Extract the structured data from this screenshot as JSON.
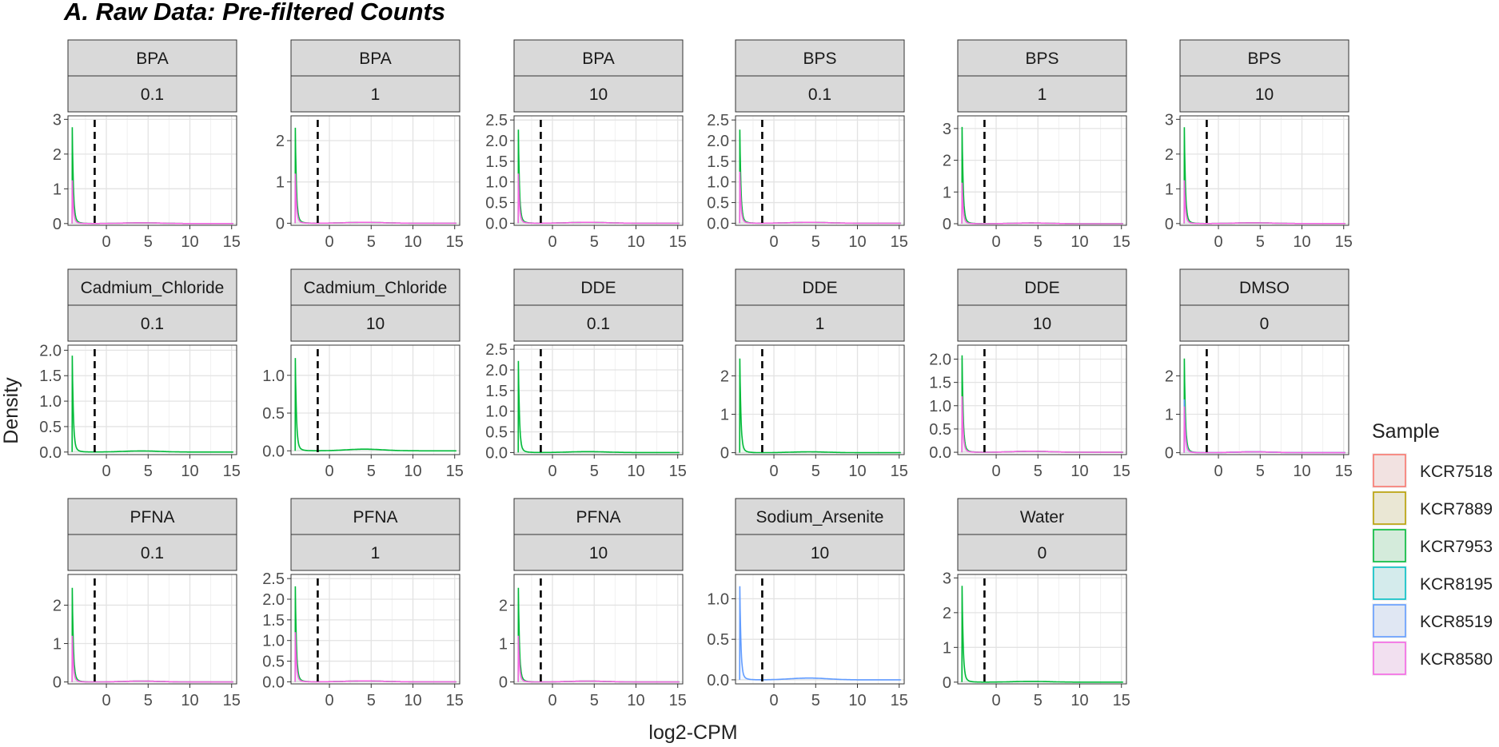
{
  "title": "A. Raw Data: Pre-filtered Counts",
  "xlabel": "log2-CPM",
  "ylabel": "Density",
  "legend": {
    "title": "Sample",
    "position": "right",
    "items": [
      {
        "label": "KCR7518",
        "color": "#F8766D"
      },
      {
        "label": "KCR7889",
        "color": "#B79F00"
      },
      {
        "label": "KCR7953",
        "color": "#00BA38"
      },
      {
        "label": "KCR8195",
        "color": "#00BFC4"
      },
      {
        "label": "KCR8519",
        "color": "#619CFF"
      },
      {
        "label": "KCR8580",
        "color": "#F564E3"
      }
    ]
  },
  "chart_data": {
    "type": "line",
    "facet": "wrap",
    "grid": true,
    "xlim": [
      -4.6,
      15.6
    ],
    "x_ticks": [
      0,
      5,
      10,
      15
    ],
    "cutoff_x": -1.4,
    "panels": [
      {
        "treatment": "BPA",
        "dose": "0.1",
        "ylim": [
          -0.05,
          3.1
        ],
        "y_ticks": [
          0,
          1,
          2,
          3
        ],
        "series": [
          {
            "name": "KCR7953",
            "peak": 3.0
          },
          {
            "name": "KCR8580",
            "peak": 1.35
          }
        ]
      },
      {
        "treatment": "BPA",
        "dose": "1",
        "ylim": [
          -0.05,
          2.6
        ],
        "y_ticks": [
          0,
          1,
          2
        ],
        "series": [
          {
            "name": "KCR7953",
            "peak": 2.5
          },
          {
            "name": "KCR8580",
            "peak": 1.3
          }
        ]
      },
      {
        "treatment": "BPA",
        "dose": "10",
        "ylim": [
          -0.05,
          2.6
        ],
        "y_ticks": [
          0.0,
          0.5,
          1.0,
          1.5,
          2.0,
          2.5
        ],
        "series": [
          {
            "name": "KCR7953",
            "peak": 2.45
          },
          {
            "name": "KCR8580",
            "peak": 1.3
          }
        ]
      },
      {
        "treatment": "BPS",
        "dose": "0.1",
        "ylim": [
          -0.05,
          2.6
        ],
        "y_ticks": [
          0.0,
          0.5,
          1.0,
          1.5,
          2.0,
          2.5
        ],
        "series": [
          {
            "name": "KCR7953",
            "peak": 2.45
          },
          {
            "name": "KCR8580",
            "peak": 1.35
          }
        ]
      },
      {
        "treatment": "BPS",
        "dose": "1",
        "ylim": [
          -0.05,
          3.4
        ],
        "y_ticks": [
          0,
          1,
          2,
          3
        ],
        "series": [
          {
            "name": "KCR7953",
            "peak": 3.3
          },
          {
            "name": "KCR8580",
            "peak": 1.4
          }
        ]
      },
      {
        "treatment": "BPS",
        "dose": "10",
        "ylim": [
          -0.05,
          3.1
        ],
        "y_ticks": [
          0,
          1,
          2,
          3
        ],
        "series": [
          {
            "name": "KCR7953",
            "peak": 3.0
          },
          {
            "name": "KCR8580",
            "peak": 1.35
          }
        ]
      },
      {
        "treatment": "Cadmium_Chloride",
        "dose": "0.1",
        "ylim": [
          -0.05,
          2.1
        ],
        "y_ticks": [
          0.0,
          0.5,
          1.0,
          1.5,
          2.0
        ],
        "series": [
          {
            "name": "KCR7953",
            "peak": 2.05
          }
        ]
      },
      {
        "treatment": "Cadmium_Chloride",
        "dose": "10",
        "ylim": [
          -0.05,
          1.4
        ],
        "y_ticks": [
          0.0,
          0.5,
          1.0
        ],
        "series": [
          {
            "name": "KCR7953",
            "peak": 1.33
          }
        ]
      },
      {
        "treatment": "DDE",
        "dose": "0.1",
        "ylim": [
          -0.05,
          2.6
        ],
        "y_ticks": [
          0.0,
          0.5,
          1.0,
          1.5,
          2.0,
          2.5
        ],
        "series": [
          {
            "name": "KCR7953",
            "peak": 2.4
          }
        ]
      },
      {
        "treatment": "DDE",
        "dose": "1",
        "ylim": [
          -0.05,
          2.8
        ],
        "y_ticks": [
          0,
          1,
          2
        ],
        "series": [
          {
            "name": "KCR7953",
            "peak": 2.65
          }
        ]
      },
      {
        "treatment": "DDE",
        "dose": "10",
        "ylim": [
          -0.05,
          2.3
        ],
        "y_ticks": [
          0.0,
          0.5,
          1.0,
          1.5,
          2.0
        ],
        "series": [
          {
            "name": "KCR7953",
            "peak": 2.25
          },
          {
            "name": "KCR8580",
            "peak": 1.3
          }
        ]
      },
      {
        "treatment": "DMSO",
        "dose": "0",
        "ylim": [
          -0.05,
          2.8
        ],
        "y_ticks": [
          0,
          1,
          2
        ],
        "series": [
          {
            "name": "KCR7953",
            "peak": 2.65
          },
          {
            "name": "KCR8519",
            "peak": 1.5
          },
          {
            "name": "KCR8580",
            "peak": 1.3
          }
        ]
      },
      {
        "treatment": "PFNA",
        "dose": "0.1",
        "ylim": [
          -0.05,
          2.8
        ],
        "y_ticks": [
          0,
          1,
          2
        ],
        "series": [
          {
            "name": "KCR7953",
            "peak": 2.65
          },
          {
            "name": "KCR8580",
            "peak": 1.3
          }
        ]
      },
      {
        "treatment": "PFNA",
        "dose": "1",
        "ylim": [
          -0.05,
          2.6
        ],
        "y_ticks": [
          0.0,
          0.5,
          1.0,
          1.5,
          2.0,
          2.5
        ],
        "series": [
          {
            "name": "KCR7953",
            "peak": 2.5
          },
          {
            "name": "KCR8580",
            "peak": 1.3
          }
        ]
      },
      {
        "treatment": "PFNA",
        "dose": "10",
        "ylim": [
          -0.05,
          2.8
        ],
        "y_ticks": [
          0,
          1,
          2
        ],
        "series": [
          {
            "name": "KCR7953",
            "peak": 2.65
          },
          {
            "name": "KCR8580",
            "peak": 1.3
          }
        ]
      },
      {
        "treatment": "Sodium_Arsenite",
        "dose": "10",
        "ylim": [
          -0.05,
          1.3
        ],
        "y_ticks": [
          0.0,
          0.5,
          1.0
        ],
        "series": [
          {
            "name": "KCR8519",
            "peak": 1.25
          }
        ]
      },
      {
        "treatment": "Water",
        "dose": "0",
        "ylim": [
          -0.05,
          3.1
        ],
        "y_ticks": [
          0,
          1,
          2,
          3
        ],
        "series": [
          {
            "name": "KCR7953",
            "peak": 3.0
          }
        ]
      }
    ]
  }
}
